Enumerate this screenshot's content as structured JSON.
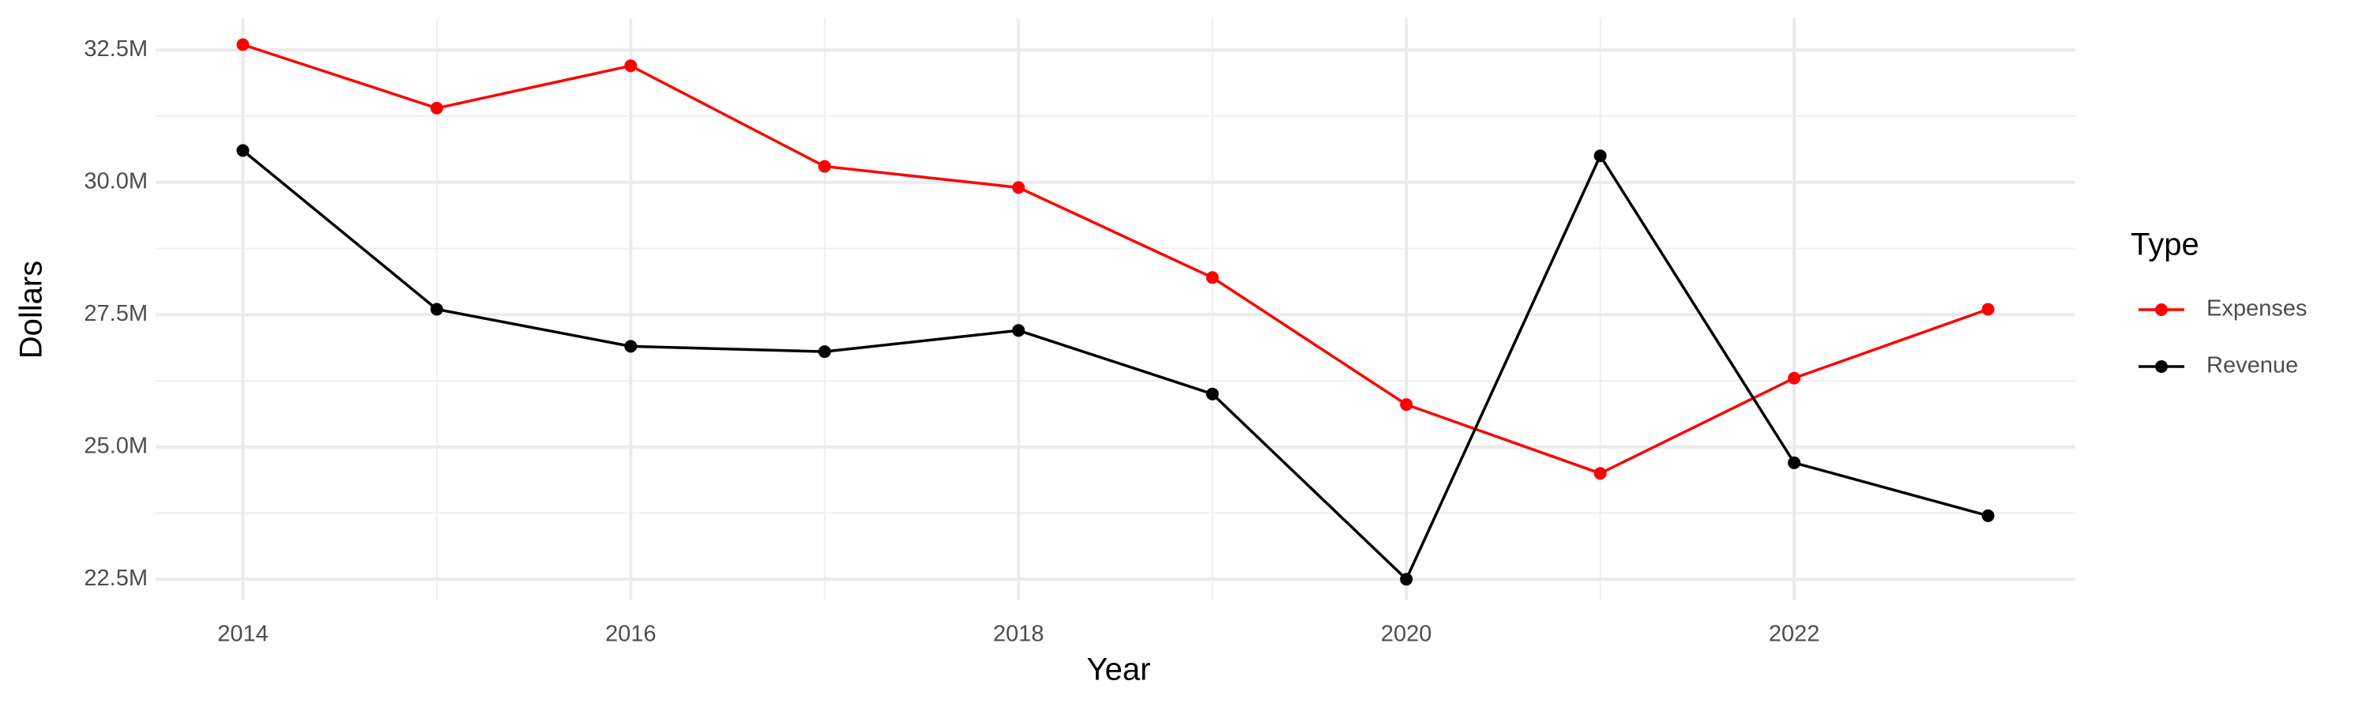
{
  "chart_data": {
    "type": "line",
    "xlabel": "Year",
    "ylabel": "Dollars",
    "legend_title": "Type",
    "legend_position": "right",
    "x": [
      2014,
      2015,
      2016,
      2017,
      2018,
      2019,
      2020,
      2021,
      2022,
      2023
    ],
    "series": [
      {
        "name": "Expenses",
        "color": "#ff0000",
        "values": [
          32600000,
          31400000,
          32200000,
          30300000,
          29900000,
          28200000,
          25800000,
          24500000,
          26300000,
          27600000
        ]
      },
      {
        "name": "Revenue",
        "color": "#000000",
        "values": [
          30600000,
          27600000,
          26900000,
          26800000,
          27200000,
          26000000,
          22500000,
          30500000,
          24700000,
          23700000
        ]
      }
    ],
    "xlim": [
      2013.55,
      2023.45
    ],
    "xticks": [
      2014,
      2016,
      2018,
      2020,
      2022
    ],
    "ylim": [
      22100000,
      33100000
    ],
    "yticks": [
      {
        "value": 22500000,
        "label": "22.5M"
      },
      {
        "value": 25000000,
        "label": "25.0M"
      },
      {
        "value": 27500000,
        "label": "27.5M"
      },
      {
        "value": 30000000,
        "label": "30.0M"
      },
      {
        "value": 32500000,
        "label": "32.5M"
      }
    ],
    "grid": true
  }
}
